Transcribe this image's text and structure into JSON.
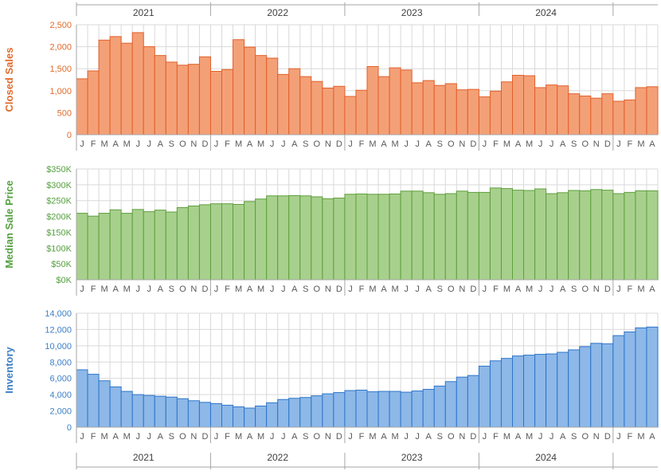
{
  "years": [
    "2021",
    "2022",
    "2023",
    "2024"
  ],
  "month_letters": [
    "J",
    "F",
    "M",
    "A",
    "M",
    "J",
    "J",
    "A",
    "S",
    "O",
    "N",
    "D",
    "J",
    "F",
    "M",
    "A",
    "M",
    "J",
    "J",
    "A",
    "S",
    "O",
    "N",
    "D",
    "J",
    "F",
    "M",
    "A",
    "M",
    "J",
    "J",
    "A",
    "S",
    "O",
    "N",
    "D",
    "J",
    "F",
    "M",
    "A",
    "M",
    "J",
    "J",
    "A",
    "S",
    "O",
    "N",
    "D",
    "J",
    "F",
    "M",
    "A"
  ],
  "chart_data": [
    {
      "type": "bar",
      "ylabel": "Closed Sales",
      "ylim": [
        0,
        2500
      ],
      "yticks": [
        "0",
        "500",
        "1,000",
        "1,500",
        "2,000",
        "2,500"
      ],
      "ytick_values": [
        0,
        500,
        1000,
        1500,
        2000,
        2500
      ],
      "color": "#f4a077",
      "edge_color": "#e0602a",
      "label_color": "#e06a2c",
      "grid": true,
      "values": [
        1270,
        1450,
        2150,
        2230,
        2080,
        2320,
        2000,
        1800,
        1650,
        1580,
        1600,
        1770,
        1440,
        1480,
        2160,
        1990,
        1800,
        1740,
        1370,
        1500,
        1320,
        1210,
        1060,
        1100,
        870,
        1010,
        1550,
        1320,
        1520,
        1470,
        1180,
        1230,
        1120,
        1160,
        1020,
        1030,
        860,
        990,
        1200,
        1350,
        1340,
        1070,
        1130,
        1110,
        930,
        880,
        830,
        930,
        760,
        790,
        1070,
        1090
      ]
    },
    {
      "type": "bar",
      "ylabel": "Median Sale Price",
      "ylim": [
        0,
        350000
      ],
      "yticks": [
        "$0K",
        "$50K",
        "$100K",
        "$150K",
        "$200K",
        "$250K",
        "$300K",
        "$350K"
      ],
      "ytick_values": [
        0,
        50000,
        100000,
        150000,
        200000,
        250000,
        300000,
        350000
      ],
      "color": "#a8d08d",
      "edge_color": "#5e9f3c",
      "label_color": "#55a040",
      "grid": true,
      "values": [
        210000,
        201000,
        210000,
        221000,
        210000,
        222000,
        215000,
        220000,
        214000,
        228000,
        233000,
        237000,
        240000,
        240000,
        238000,
        247000,
        255000,
        265000,
        265000,
        266000,
        265000,
        262000,
        256000,
        258000,
        270000,
        271000,
        270000,
        270000,
        271000,
        280000,
        280000,
        275000,
        270000,
        272000,
        280000,
        276000,
        276000,
        290000,
        288000,
        283000,
        282000,
        287000,
        272000,
        275000,
        282000,
        281000,
        285000,
        283000,
        272000,
        276000,
        281000,
        281000
      ]
    },
    {
      "type": "bar",
      "ylabel": "Inventory",
      "ylim": [
        0,
        14000
      ],
      "yticks": [
        "0",
        "2,000",
        "4,000",
        "6,000",
        "8,000",
        "10,000",
        "12,000",
        "14,000"
      ],
      "ytick_values": [
        0,
        2000,
        4000,
        6000,
        8000,
        10000,
        12000,
        14000
      ],
      "color": "#8db8e8",
      "edge_color": "#2e75c8",
      "label_color": "#3c7fc6",
      "grid": true,
      "values": [
        7050,
        6500,
        5700,
        4950,
        4400,
        4000,
        3900,
        3800,
        3700,
        3500,
        3250,
        3050,
        2900,
        2700,
        2500,
        2350,
        2600,
        3000,
        3400,
        3550,
        3650,
        3850,
        4100,
        4250,
        4500,
        4550,
        4350,
        4400,
        4400,
        4300,
        4450,
        4650,
        5050,
        5600,
        6150,
        6350,
        7500,
        8150,
        8450,
        8750,
        8850,
        8950,
        9000,
        9200,
        9500,
        9900,
        10300,
        10250,
        11250,
        11700,
        12200,
        12300
      ]
    }
  ]
}
